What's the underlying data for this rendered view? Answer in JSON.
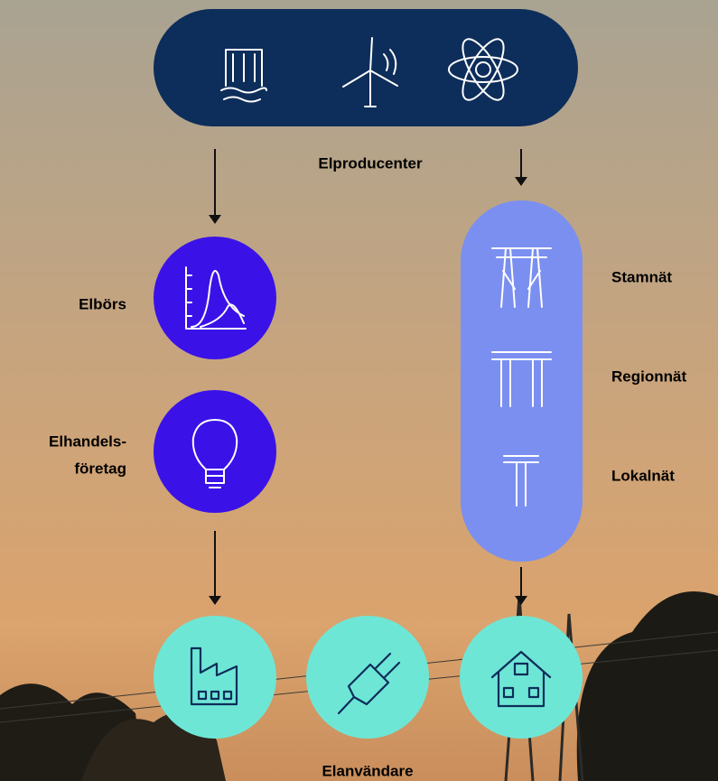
{
  "producers": {
    "label": "Elproducenter"
  },
  "exchange": {
    "label": "Elbörs"
  },
  "retailers": {
    "label_lines": [
      "Elhandels-",
      "företag"
    ]
  },
  "grid": {
    "levels": [
      "Stamnät",
      "Regionnät",
      "Lokalnät"
    ]
  },
  "consumers": {
    "label": "Elanvändare"
  }
}
